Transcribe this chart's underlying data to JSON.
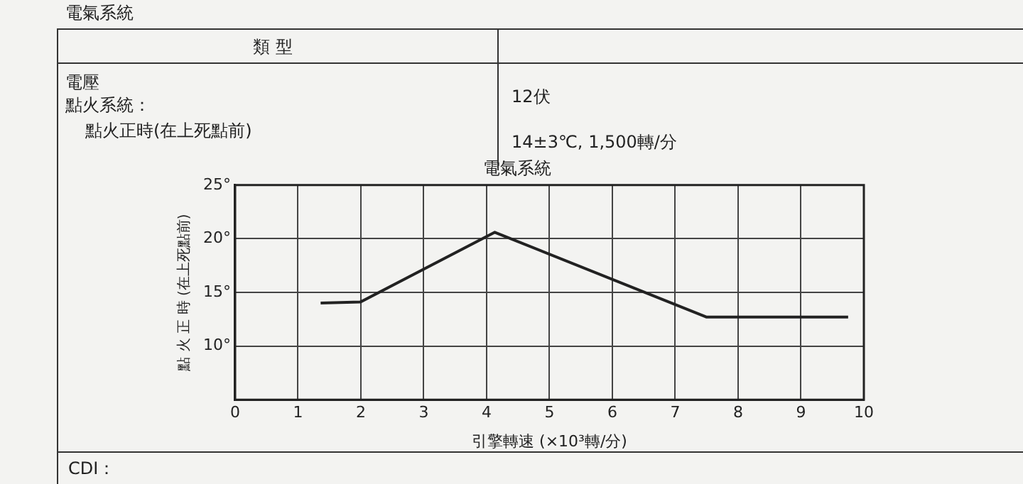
{
  "chart_data": {
    "type": "line",
    "title": "電氣系統",
    "xlabel": "引擎轉速 (×10³轉/分)",
    "ylabel": "點 火 正 時 (在上死點前)",
    "annotations": [
      "電氣系統",
      "類 型",
      "電壓",
      "點火系統：",
      "點火正時(在上死點前)",
      "12伏",
      "14±3℃, 1,500轉/分",
      "CDI："
    ],
    "series": [
      {
        "color": "#222222",
        "x": [
          1.36,
          1.99,
          4.13,
          7.5,
          9.75
        ],
        "values": [
          14.0,
          14.1,
          20.6,
          12.7,
          12.7
        ]
      }
    ],
    "xlim": [
      0,
      10
    ],
    "xticks": [
      0,
      1,
      2,
      3,
      4,
      5,
      6,
      7,
      8,
      9,
      10
    ],
    "ylim": [
      5,
      25
    ],
    "yticks": [
      {
        "value": 10,
        "label": "10°"
      },
      {
        "value": 15,
        "label": "15°"
      },
      {
        "value": 20,
        "label": "20°"
      },
      {
        "value": 25,
        "label": "25°"
      }
    ],
    "grid": true,
    "legend": false,
    "marker": "none",
    "line_style": "solid"
  }
}
